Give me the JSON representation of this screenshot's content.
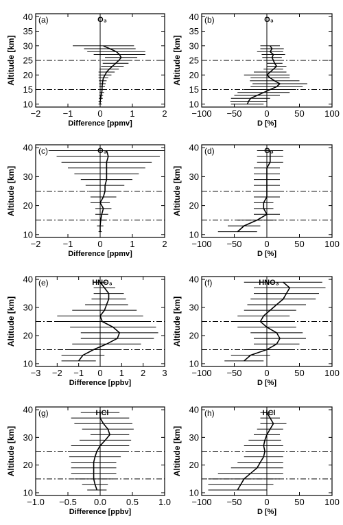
{
  "chart_data": [
    {
      "type": "line",
      "letter": "(a)",
      "title": "O₃",
      "xlabel": "Difference [ppmv]",
      "ylabel": "Altitude [km]",
      "xlim": [
        -2,
        2
      ],
      "ylim": [
        9,
        41
      ],
      "xticks": [
        "−2",
        "−1",
        "0",
        "1",
        "2"
      ],
      "xtickvals": [
        -2,
        -1,
        0,
        1,
        2
      ],
      "yticks": [
        "10",
        "15",
        "20",
        "25",
        "30",
        "35",
        "40"
      ],
      "ytickvals": [
        10,
        15,
        20,
        25,
        30,
        35,
        40
      ],
      "dashdot_altitudes": [
        15,
        25
      ],
      "altitude": [
        10,
        11,
        12,
        13,
        14,
        15,
        16,
        17,
        18,
        19,
        20,
        21,
        22,
        23,
        24,
        25,
        26,
        27,
        28,
        29,
        30
      ],
      "mean": [
        0.0,
        0.0,
        0.02,
        0.03,
        0.05,
        0.06,
        0.06,
        0.07,
        0.08,
        0.1,
        0.15,
        0.2,
        0.28,
        0.38,
        0.48,
        0.58,
        0.65,
        0.6,
        0.5,
        0.3,
        0.1
      ],
      "spread": [
        0.05,
        0.05,
        0.06,
        0.06,
        0.07,
        0.08,
        0.09,
        0.1,
        0.12,
        0.15,
        0.2,
        0.25,
        0.3,
        0.35,
        0.4,
        0.42,
        0.5,
        0.8,
        0.9,
        0.8,
        0.95
      ]
    },
    {
      "type": "line",
      "letter": "(b)",
      "title": "O₃",
      "xlabel": "D [%]",
      "ylabel": "Altitude [km]",
      "xlim": [
        -100,
        100
      ],
      "ylim": [
        9,
        41
      ],
      "xticks": [
        "−100",
        "−50",
        "0",
        "50",
        "100"
      ],
      "xtickvals": [
        -100,
        -50,
        0,
        50,
        100
      ],
      "yticks": [
        "10",
        "15",
        "20",
        "25",
        "30",
        "35",
        "40"
      ],
      "ytickvals": [
        10,
        15,
        20,
        25,
        30,
        35,
        40
      ],
      "dashdot_altitudes": [
        15,
        25
      ],
      "altitude": [
        10,
        11,
        12,
        13,
        14,
        15,
        16,
        17,
        18,
        19,
        20,
        21,
        22,
        23,
        24,
        25,
        26,
        27,
        28,
        29,
        30
      ],
      "mean": [
        -30,
        -28,
        -25,
        -15,
        -5,
        5,
        15,
        20,
        12,
        5,
        0,
        5,
        10,
        15,
        12,
        10,
        8,
        10,
        5,
        8,
        5
      ],
      "spread": [
        25,
        28,
        30,
        35,
        40,
        40,
        40,
        42,
        38,
        30,
        35,
        25,
        15,
        15,
        12,
        15,
        15,
        18,
        20,
        18,
        15
      ]
    },
    {
      "type": "line",
      "letter": "(c)",
      "title": "O₃",
      "xlabel": "Difference [ppmv]",
      "ylabel": "Altitude [km]",
      "xlim": [
        -2,
        2
      ],
      "ylim": [
        9,
        41
      ],
      "xticks": [
        "−2",
        "−1",
        "0",
        "1",
        "2"
      ],
      "xtickvals": [
        -2,
        -1,
        0,
        1,
        2
      ],
      "yticks": [
        "10",
        "20",
        "30",
        "40"
      ],
      "ytickvals": [
        10,
        20,
        30,
        40
      ],
      "dashdot_altitudes": [
        15,
        25
      ],
      "altitude": [
        11,
        13,
        15,
        17,
        19,
        21,
        23,
        25,
        27,
        29,
        31,
        33,
        35,
        37,
        39
      ],
      "mean": [
        0.0,
        0.0,
        0.02,
        0.05,
        0.1,
        0.0,
        0.1,
        0.15,
        0.15,
        0.2,
        0.2,
        0.2,
        0.2,
        0.25,
        0.2
      ],
      "spread": [
        0.05,
        0.1,
        0.15,
        0.2,
        0.25,
        0.3,
        0.4,
        0.5,
        0.6,
        0.8,
        1.0,
        1.2,
        1.4,
        1.6,
        1.8
      ]
    },
    {
      "type": "line",
      "letter": "(d)",
      "title": "O₃",
      "xlabel": "D [%]",
      "ylabel": "Altitude [km]",
      "xlim": [
        -100,
        100
      ],
      "ylim": [
        9,
        41
      ],
      "xticks": [
        "−100",
        "−50",
        "0",
        "50",
        "100"
      ],
      "xtickvals": [
        -100,
        -50,
        0,
        50,
        100
      ],
      "yticks": [
        "10",
        "20",
        "30",
        "40"
      ],
      "ytickvals": [
        10,
        20,
        30,
        40
      ],
      "dashdot_altitudes": [
        15,
        25
      ],
      "altitude": [
        11,
        13,
        15,
        17,
        19,
        21,
        23,
        25,
        27,
        29,
        31,
        33,
        35,
        37,
        39
      ],
      "mean": [
        -45,
        -35,
        -15,
        0,
        -5,
        -5,
        0,
        0,
        0,
        0,
        0,
        0,
        5,
        5,
        5
      ],
      "spread": [
        30,
        25,
        30,
        20,
        15,
        15,
        20,
        20,
        20,
        20,
        20,
        20,
        20,
        20,
        20
      ]
    },
    {
      "type": "line",
      "letter": "(e)",
      "title": "HNO₃",
      "xlabel": "Difference [ppbv]",
      "ylabel": "Altitude [km]",
      "xlim": [
        -3,
        3
      ],
      "ylim": [
        9,
        41
      ],
      "xticks": [
        "−3",
        "−2",
        "−1",
        "0",
        "1",
        "2",
        "3"
      ],
      "xtickvals": [
        -3,
        -2,
        -1,
        0,
        1,
        2,
        3
      ],
      "yticks": [
        "10",
        "20",
        "30",
        "40"
      ],
      "ytickvals": [
        10,
        20,
        30,
        40
      ],
      "dashdot_altitudes": [
        15,
        25
      ],
      "altitude": [
        11,
        13,
        15,
        17,
        19,
        21,
        23,
        25,
        27,
        29,
        31,
        33,
        35,
        37,
        39
      ],
      "mean": [
        -1.0,
        -0.8,
        -0.3,
        0.3,
        0.8,
        0.9,
        0.6,
        0.1,
        0.0,
        0.2,
        0.3,
        0.4,
        0.4,
        0.2,
        0.0
      ],
      "spread": [
        0.8,
        1.0,
        1.3,
        1.6,
        1.7,
        1.8,
        2.0,
        2.2,
        2.0,
        1.5,
        1.0,
        0.8,
        0.7,
        0.5,
        0.3
      ]
    },
    {
      "type": "line",
      "letter": "(f)",
      "title": "HNO₃",
      "xlabel": "D [%]",
      "ylabel": "Altitude [km]",
      "xlim": [
        -100,
        100
      ],
      "ylim": [
        9,
        41
      ],
      "xticks": [
        "−100",
        "−50",
        "0",
        "50",
        "100"
      ],
      "xtickvals": [
        -100,
        -50,
        0,
        50,
        100
      ],
      "yticks": [
        "10",
        "20",
        "30",
        "40"
      ],
      "ytickvals": [
        10,
        20,
        30,
        40
      ],
      "dashdot_altitudes": [
        15,
        25
      ],
      "altitude": [
        11,
        13,
        15,
        17,
        19,
        21,
        23,
        25,
        27,
        29,
        31,
        33,
        35,
        37,
        39
      ],
      "mean": [
        -35,
        -25,
        0,
        15,
        20,
        15,
        0,
        -10,
        -5,
        5,
        15,
        25,
        30,
        35,
        25
      ],
      "spread": [
        30,
        30,
        35,
        35,
        40,
        40,
        45,
        45,
        40,
        40,
        45,
        50,
        50,
        55,
        60
      ]
    },
    {
      "type": "line",
      "letter": "(g)",
      "title": "HCl",
      "xlabel": "Difference [ppbv]",
      "ylabel": "Altitude [km]",
      "xlim": [
        -1.0,
        1.0
      ],
      "ylim": [
        9,
        41
      ],
      "xticks": [
        "−1.0",
        "−0.5",
        "0.0",
        "0.5",
        "1.0"
      ],
      "xtickvals": [
        -1,
        -0.5,
        0,
        0.5,
        1
      ],
      "yticks": [
        "10",
        "20",
        "30",
        "40"
      ],
      "ytickvals": [
        10,
        20,
        30,
        40
      ],
      "dashdot_altitudes": [
        15,
        25
      ],
      "altitude": [
        11,
        13,
        15,
        17,
        19,
        21,
        23,
        25,
        27,
        29,
        31,
        33,
        35,
        37,
        39
      ],
      "mean": [
        -0.05,
        -0.08,
        -0.1,
        -0.1,
        -0.1,
        -0.1,
        -0.08,
        -0.05,
        0.0,
        0.08,
        0.15,
        0.12,
        0.05,
        0.0,
        0.0
      ],
      "spread": [
        0.15,
        0.2,
        0.3,
        0.35,
        0.35,
        0.35,
        0.4,
        0.45,
        0.45,
        0.4,
        0.3,
        0.4,
        0.45,
        0.45,
        0.3
      ]
    },
    {
      "type": "line",
      "letter": "(h)",
      "title": "HCl",
      "xlabel": "D [%]",
      "ylabel": "Altitude [km]",
      "xlim": [
        -100,
        100
      ],
      "ylim": [
        9,
        41
      ],
      "xticks": [
        "−100",
        "−50",
        "0",
        "50",
        "100"
      ],
      "xtickvals": [
        -100,
        -50,
        0,
        50,
        100
      ],
      "yticks": [
        "10",
        "20",
        "30",
        "40"
      ],
      "ytickvals": [
        10,
        20,
        30,
        40
      ],
      "dashdot_altitudes": [
        15,
        25
      ],
      "altitude": [
        11,
        13,
        15,
        17,
        19,
        21,
        23,
        25,
        27,
        29,
        31,
        33,
        35,
        37,
        39
      ],
      "mean": [
        -45,
        -40,
        -35,
        -25,
        -15,
        -10,
        -5,
        -3,
        -5,
        -3,
        0,
        5,
        10,
        5,
        0
      ],
      "spread": [
        45,
        50,
        55,
        50,
        40,
        35,
        30,
        30,
        30,
        25,
        20,
        20,
        20,
        15,
        10
      ]
    }
  ]
}
